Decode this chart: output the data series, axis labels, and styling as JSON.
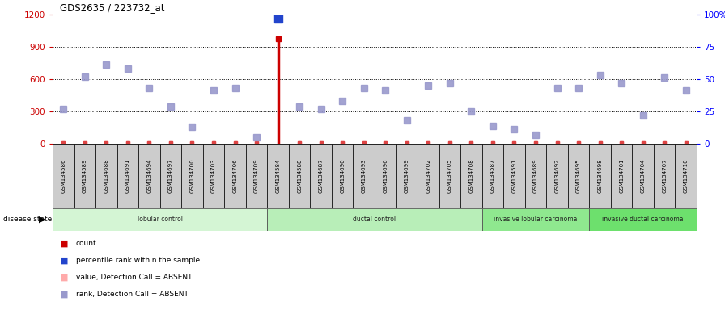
{
  "title": "GDS2635 / 223732_at",
  "samples": [
    "GSM134586",
    "GSM134589",
    "GSM134688",
    "GSM134691",
    "GSM134694",
    "GSM134697",
    "GSM134700",
    "GSM134703",
    "GSM134706",
    "GSM134709",
    "GSM134584",
    "GSM134588",
    "GSM134687",
    "GSM134690",
    "GSM134693",
    "GSM134696",
    "GSM134699",
    "GSM134702",
    "GSM134705",
    "GSM134708",
    "GSM134587",
    "GSM134591",
    "GSM134689",
    "GSM134692",
    "GSM134695",
    "GSM134698",
    "GSM134701",
    "GSM134704",
    "GSM134707",
    "GSM134710"
  ],
  "groups": [
    {
      "label": "lobular control",
      "start": 0,
      "end": 10
    },
    {
      "label": "ductal control",
      "start": 10,
      "end": 20
    },
    {
      "label": "invasive lobular carcinoma",
      "start": 20,
      "end": 25
    },
    {
      "label": "invasive ductal carcinoma",
      "start": 25,
      "end": 30
    }
  ],
  "group_colors": [
    "#d4f5d4",
    "#b8eeb8",
    "#8fe88f",
    "#6de06d"
  ],
  "pct_ranks": [
    27,
    52,
    61,
    58,
    43,
    29,
    13,
    41,
    43,
    5,
    97,
    29,
    27,
    33,
    43,
    41,
    18,
    45,
    47,
    25,
    14,
    11,
    7,
    43,
    43,
    53,
    47,
    22,
    51,
    41
  ],
  "count_vals": [
    8,
    8,
    8,
    8,
    8,
    8,
    8,
    8,
    8,
    8,
    975,
    8,
    8,
    8,
    8,
    8,
    8,
    8,
    8,
    8,
    8,
    8,
    8,
    8,
    8,
    8,
    8,
    8,
    8,
    8
  ],
  "absent_value_y": [
    8,
    8,
    8,
    8,
    8,
    8,
    8,
    8,
    8,
    8,
    999,
    8,
    8,
    8,
    8,
    8,
    8,
    8,
    8,
    8,
    8,
    8,
    8,
    8,
    8,
    8,
    8,
    8,
    8,
    8
  ],
  "present_idx": [
    10
  ],
  "ylim_left": [
    0,
    1200
  ],
  "ylim_right": [
    0,
    100
  ],
  "yticks_left": [
    0,
    300,
    600,
    900,
    1200
  ],
  "yticks_right": [
    0,
    25,
    50,
    75,
    100
  ],
  "background_color": "#ffffff",
  "disease_state_label": "disease state"
}
